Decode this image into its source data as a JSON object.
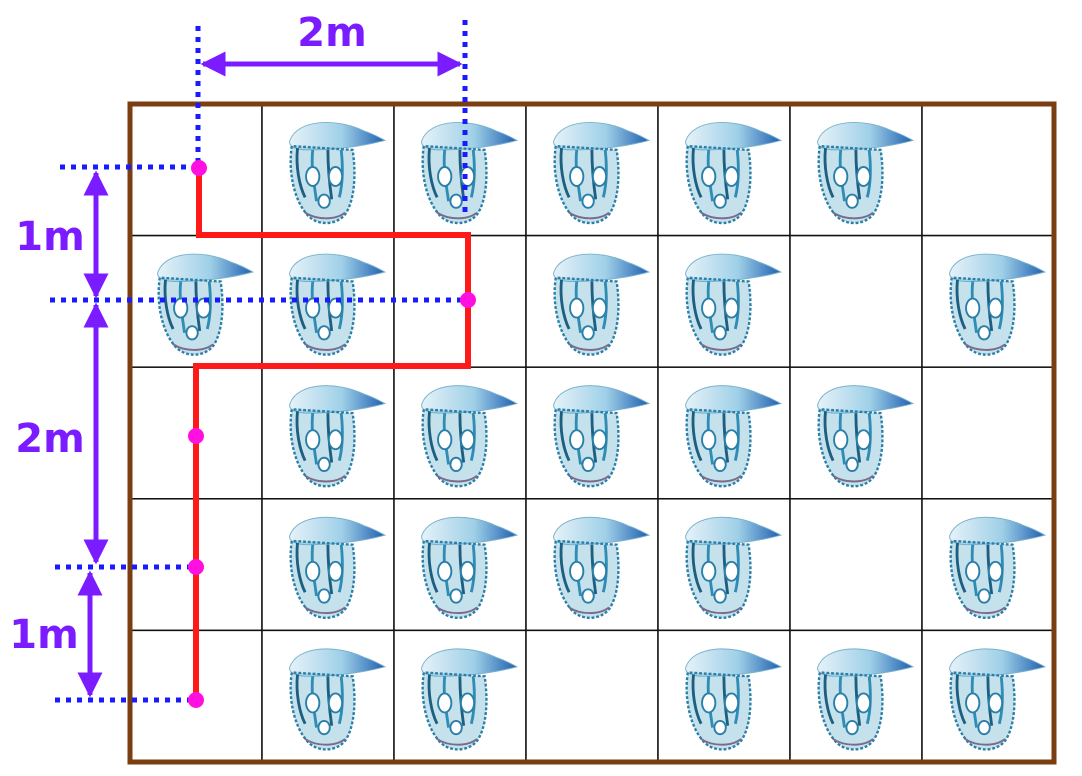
{
  "grid": {
    "rows": 5,
    "cols": 7,
    "occupied": [
      [
        0,
        1,
        1,
        1,
        1,
        1,
        0
      ],
      [
        1,
        1,
        0,
        1,
        1,
        0,
        1
      ],
      [
        0,
        1,
        1,
        1,
        1,
        1,
        0
      ],
      [
        0,
        1,
        1,
        1,
        1,
        0,
        1
      ],
      [
        0,
        1,
        1,
        0,
        1,
        1,
        1
      ]
    ]
  },
  "dimensions": {
    "top_width": "2m",
    "left_segments": [
      "1m",
      "2m",
      "1m"
    ]
  },
  "colors": {
    "border": "#7a3e10",
    "grid_line": "#111111",
    "path": "#ff1a1a",
    "dot": "#ff10e0",
    "dim_arrow": "#7a1cff",
    "dim_dotted": "#1a1aff",
    "creature_float": "#6ab3d8",
    "creature_tentacles": "#2a7fa8"
  },
  "icons": {
    "creature": "portuguese-man-o-war-icon"
  }
}
